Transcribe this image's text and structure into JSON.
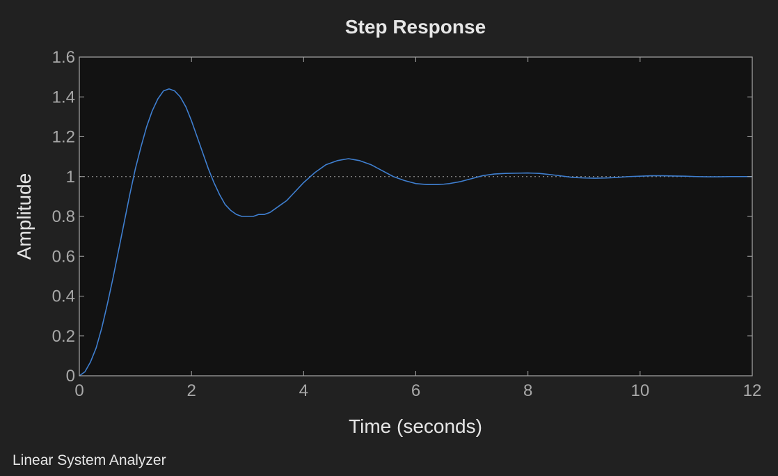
{
  "app": {
    "footer_label": "Linear System Analyzer"
  },
  "chart_data": {
    "type": "line",
    "title": "Step Response",
    "xlabel": "Time (seconds)",
    "ylabel": "Amplitude",
    "xlim": [
      0,
      12
    ],
    "ylim": [
      0,
      1.6
    ],
    "xticks": [
      0,
      2,
      4,
      6,
      8,
      10,
      12
    ],
    "yticks": [
      0,
      0.2,
      0.4,
      0.6,
      0.8,
      1,
      1.2,
      1.4,
      1.6
    ],
    "ytick_labels": [
      "0",
      "0.2",
      "0.4",
      "0.6",
      "0.8",
      "1",
      "1.2",
      "1.4",
      "1.6"
    ],
    "grid": false,
    "reference_line": {
      "y": 1,
      "style": "dotted",
      "color": "#8a8a8a"
    },
    "colors": {
      "background": "#212121",
      "plot_area": "#121212",
      "axes": "#a8a8a8",
      "series": "#3f7fd0"
    },
    "series": [
      {
        "x": [
          0,
          0.1,
          0.2,
          0.3,
          0.4,
          0.5,
          0.6,
          0.7,
          0.8,
          0.9,
          1.0,
          1.1,
          1.2,
          1.3,
          1.4,
          1.5,
          1.6,
          1.7,
          1.8,
          1.9,
          2.0,
          2.1,
          2.2,
          2.3,
          2.4,
          2.5,
          2.6,
          2.7,
          2.8,
          2.9,
          3.0,
          3.1,
          3.2,
          3.3,
          3.4,
          3.5,
          3.6,
          3.7,
          3.8,
          3.9,
          4.0,
          4.2,
          4.4,
          4.6,
          4.8,
          4.9,
          5.0,
          5.2,
          5.4,
          5.6,
          5.8,
          6.0,
          6.2,
          6.4,
          6.5,
          6.6,
          6.8,
          7.0,
          7.2,
          7.4,
          7.6,
          7.8,
          8.0,
          8.1,
          8.2,
          8.4,
          8.6,
          8.8,
          9.0,
          9.2,
          9.4,
          9.6,
          9.8,
          10.0,
          10.2,
          10.4,
          10.6,
          10.8,
          11.0,
          11.2,
          11.4,
          11.6,
          11.8,
          12.0
        ],
        "y": [
          0,
          0.02,
          0.07,
          0.14,
          0.24,
          0.36,
          0.49,
          0.63,
          0.77,
          0.91,
          1.04,
          1.15,
          1.25,
          1.33,
          1.39,
          1.43,
          1.44,
          1.43,
          1.4,
          1.35,
          1.28,
          1.2,
          1.12,
          1.04,
          0.97,
          0.91,
          0.86,
          0.83,
          0.81,
          0.8,
          0.8,
          0.8,
          0.81,
          0.81,
          0.82,
          0.84,
          0.86,
          0.88,
          0.91,
          0.94,
          0.97,
          1.02,
          1.06,
          1.08,
          1.09,
          1.085,
          1.08,
          1.06,
          1.03,
          1.0,
          0.98,
          0.965,
          0.96,
          0.96,
          0.962,
          0.965,
          0.975,
          0.99,
          1.005,
          1.013,
          1.016,
          1.017,
          1.018,
          1.017,
          1.016,
          1.01,
          1.003,
          0.996,
          0.993,
          0.992,
          0.993,
          0.996,
          1.0,
          1.002,
          1.004,
          1.004,
          1.003,
          1.002,
          1.0,
          0.999,
          0.999,
          1.0,
          1.0,
          1.0
        ]
      }
    ]
  }
}
